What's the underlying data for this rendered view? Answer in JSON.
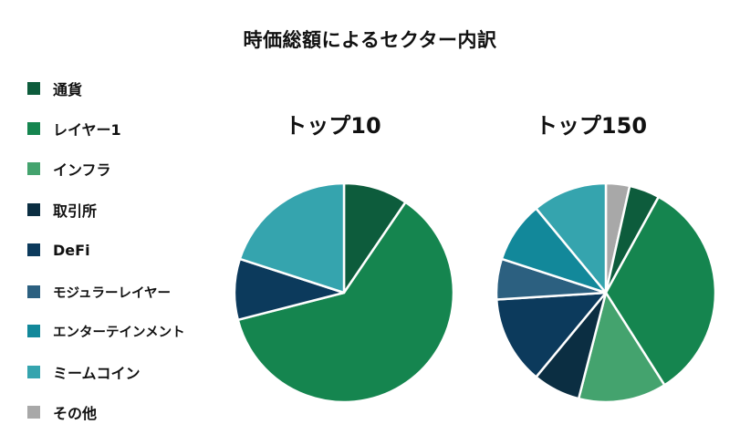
{
  "chart_data": {
    "type": "pie",
    "title": "時価総額によるセクター内訳",
    "legend": {
      "placement": "left",
      "entries": [
        {
          "label": "通貨",
          "color": "#0d5c3c"
        },
        {
          "label": "レイヤー1",
          "color": "#15854f"
        },
        {
          "label": "インフラ",
          "color": "#44a36e"
        },
        {
          "label": "取引所",
          "color": "#0b2e42"
        },
        {
          "label": "DeFi",
          "color": "#0c3a5c"
        },
        {
          "label": "モジュラーレイヤー",
          "color": "#2c6080"
        },
        {
          "label": "エンターテインメント",
          "color": "#12889a"
        },
        {
          "label": "ミームコイン",
          "color": "#35a4ae"
        },
        {
          "label": "その他",
          "color": "#a8a8a8"
        }
      ]
    },
    "pies": [
      {
        "title": "トップ10",
        "slices": [
          {
            "category": "通貨",
            "value": 9.5
          },
          {
            "category": "レイヤー1",
            "value": 61.5
          },
          {
            "category": "DeFi",
            "value": 9
          },
          {
            "category": "ミームコイン",
            "value": 20
          }
        ]
      },
      {
        "title": "トップ150",
        "slices": [
          {
            "category": "その他",
            "value": 3.5
          },
          {
            "category": "通貨",
            "value": 4.5
          },
          {
            "category": "レイヤー1",
            "value": 33
          },
          {
            "category": "インフラ",
            "value": 13
          },
          {
            "category": "取引所",
            "value": 7
          },
          {
            "category": "DeFi",
            "value": 13
          },
          {
            "category": "モジュラーレイヤー",
            "value": 6
          },
          {
            "category": "エンターテインメント",
            "value": 9
          },
          {
            "category": "ミームコイン",
            "value": 11
          }
        ]
      }
    ]
  }
}
